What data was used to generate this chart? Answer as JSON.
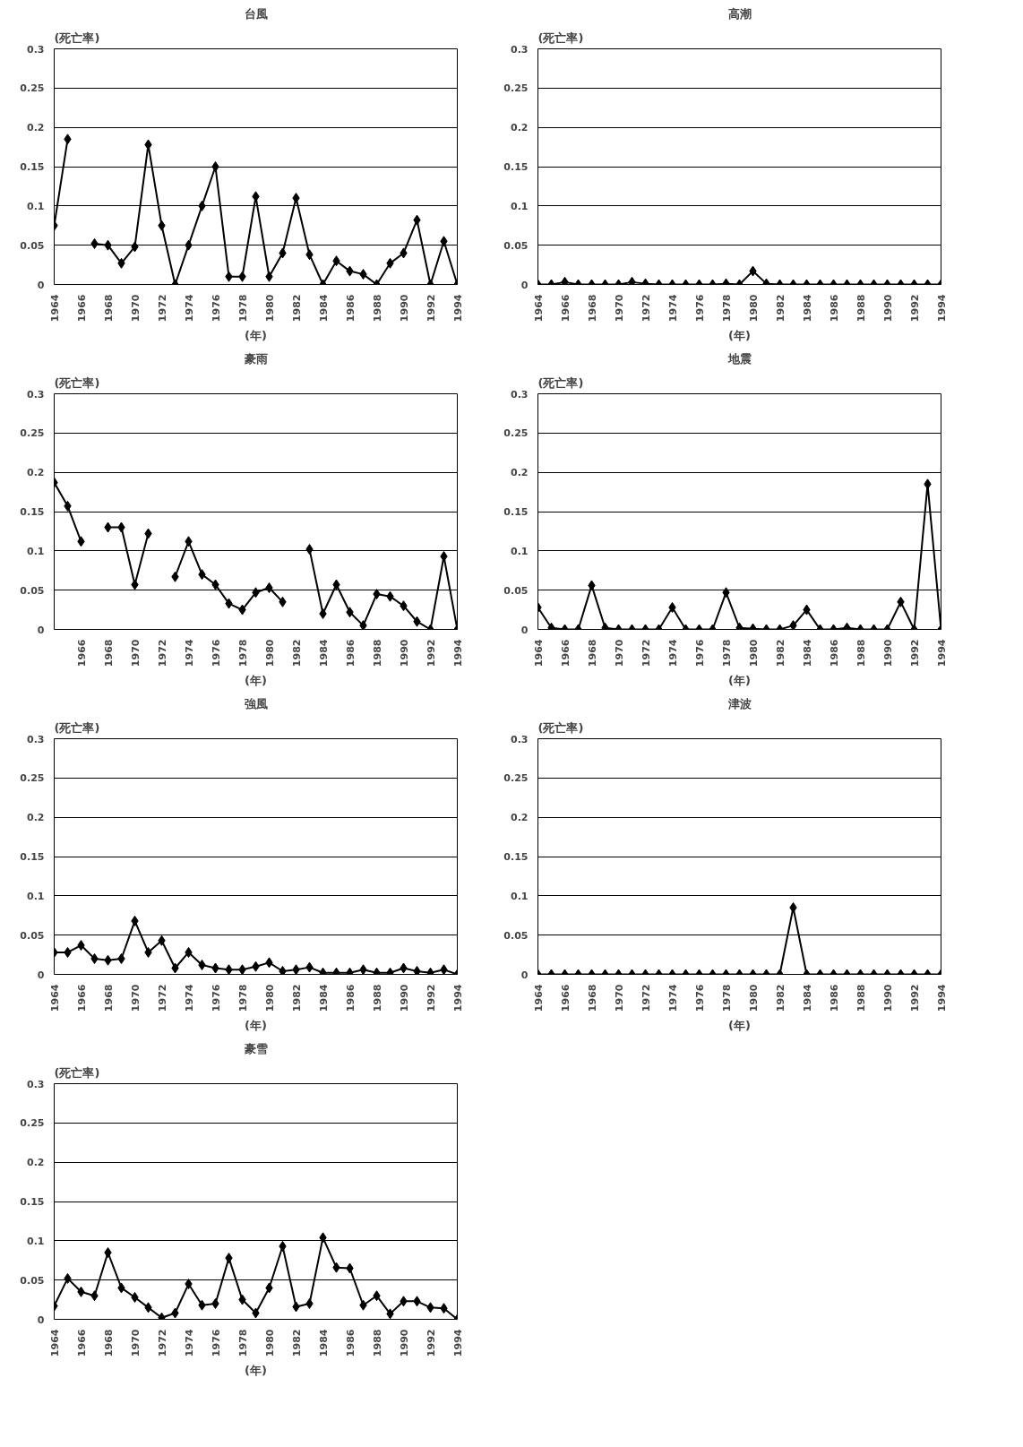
{
  "chart_data": [
    {
      "type": "line",
      "title": "台風",
      "ylabel": "(死亡率)",
      "xlabel": "(年)",
      "marker": "diamond",
      "grid": "y",
      "x": [
        1964,
        1965,
        1966,
        1967,
        1968,
        1969,
        1970,
        1971,
        1972,
        1973,
        1974,
        1975,
        1976,
        1977,
        1978,
        1979,
        1980,
        1981,
        1982,
        1983,
        1984,
        1985,
        1986,
        1987,
        1988,
        1989,
        1990,
        1991,
        1992,
        1993,
        1994
      ],
      "series": [
        {
          "color": "#000000",
          "values": [
            0.075,
            0.185,
            null,
            0.052,
            0.05,
            0.027,
            0.048,
            0.178,
            0.075,
            0,
            0.05,
            0.1,
            0.15,
            0.01,
            0.01,
            0.112,
            0.01,
            0.04,
            0.11,
            0.038,
            0,
            0.03,
            0.017,
            0.013,
            0,
            0.027,
            0.04,
            0.082,
            0,
            0.055,
            0
          ]
        }
      ],
      "xlim": [
        1964,
        1994
      ],
      "xticks": [
        1964,
        1966,
        1968,
        1970,
        1972,
        1974,
        1976,
        1978,
        1980,
        1982,
        1984,
        1986,
        1988,
        1990,
        1992,
        1994
      ],
      "ylim": [
        0,
        0.3
      ],
      "yticks": [
        0,
        0.05,
        0.1,
        0.15,
        0.2,
        0.25,
        0.3
      ]
    },
    {
      "type": "line",
      "title": "高潮",
      "ylabel": "(死亡率)",
      "xlabel": "(年)",
      "marker": "diamond",
      "grid": "y",
      "x": [
        1964,
        1965,
        1966,
        1967,
        1968,
        1969,
        1970,
        1971,
        1972,
        1973,
        1974,
        1975,
        1976,
        1977,
        1978,
        1979,
        1980,
        1981,
        1982,
        1983,
        1984,
        1985,
        1986,
        1987,
        1988,
        1989,
        1990,
        1991,
        1992,
        1993,
        1994
      ],
      "series": [
        {
          "color": "#000000",
          "values": [
            0,
            0,
            0.003,
            0,
            0,
            0,
            0,
            0.003,
            0.001,
            0,
            0,
            0,
            0,
            0,
            0.001,
            0,
            0.017,
            0.001,
            0,
            0,
            0,
            0,
            0,
            0,
            0,
            0,
            0,
            0,
            0,
            0,
            0
          ]
        }
      ],
      "xlim": [
        1964,
        1994
      ],
      "xticks": [
        1964,
        1966,
        1968,
        1970,
        1972,
        1974,
        1976,
        1978,
        1980,
        1982,
        1984,
        1986,
        1988,
        1990,
        1992,
        1994
      ],
      "ylim": [
        0,
        0.3
      ],
      "yticks": [
        0,
        0.05,
        0.1,
        0.15,
        0.2,
        0.25,
        0.3
      ]
    },
    {
      "type": "line",
      "title": "豪雨",
      "ylabel": "(死亡率)",
      "xlabel": "(年)",
      "marker": "diamond",
      "grid": "y",
      "x": [
        1964,
        1965,
        1966,
        1967,
        1968,
        1969,
        1970,
        1971,
        1972,
        1973,
        1974,
        1975,
        1976,
        1977,
        1978,
        1979,
        1980,
        1981,
        1982,
        1983,
        1984,
        1985,
        1986,
        1987,
        1988,
        1989,
        1990,
        1991,
        1992,
        1993,
        1994
      ],
      "series": [
        {
          "color": "#000000",
          "values": [
            0.187,
            0.157,
            0.112,
            null,
            0.13,
            0.13,
            0.057,
            0.122,
            null,
            0.067,
            0.112,
            0.07,
            0.057,
            0.033,
            0.025,
            0.047,
            0.053,
            0.035,
            null,
            0.102,
            0.02,
            0.057,
            0.022,
            0.005,
            0.045,
            0.042,
            0.03,
            0.01,
            0,
            0.093,
            0
          ]
        }
      ],
      "xlim": [
        1964,
        1994
      ],
      "xticks": [
        1966,
        1968,
        1970,
        1972,
        1974,
        1976,
        1978,
        1980,
        1982,
        1984,
        1986,
        1988,
        1990,
        1992,
        1994
      ],
      "ylim": [
        0,
        0.3
      ],
      "yticks": [
        0,
        0.05,
        0.1,
        0.15,
        0.2,
        0.25,
        0.3
      ]
    },
    {
      "type": "line",
      "title": "地震",
      "ylabel": "(死亡率)",
      "xlabel": "(年)",
      "marker": "diamond",
      "grid": "y",
      "x": [
        1964,
        1965,
        1966,
        1967,
        1968,
        1969,
        1970,
        1971,
        1972,
        1973,
        1974,
        1975,
        1976,
        1977,
        1978,
        1979,
        1980,
        1981,
        1982,
        1983,
        1984,
        1985,
        1986,
        1987,
        1988,
        1989,
        1990,
        1991,
        1992,
        1993,
        1994
      ],
      "series": [
        {
          "color": "#000000",
          "values": [
            0.028,
            0.002,
            0,
            0,
            0.056,
            0.002,
            0,
            0,
            0,
            0,
            0.028,
            0,
            0,
            0,
            0.047,
            0.002,
            0.001,
            0,
            0,
            0.005,
            0.025,
            0,
            0,
            0.002,
            0,
            0,
            0,
            0.035,
            0,
            0.185,
            0
          ]
        }
      ],
      "xlim": [
        1964,
        1994
      ],
      "xticks": [
        1964,
        1966,
        1968,
        1970,
        1972,
        1974,
        1976,
        1978,
        1980,
        1982,
        1984,
        1986,
        1988,
        1990,
        1992,
        1994
      ],
      "ylim": [
        0,
        0.3
      ],
      "yticks": [
        0,
        0.05,
        0.1,
        0.15,
        0.2,
        0.25,
        0.3
      ]
    },
    {
      "type": "line",
      "title": "強風",
      "ylabel": "(死亡率)",
      "xlabel": "(年)",
      "marker": "diamond",
      "grid": "y",
      "x": [
        1964,
        1965,
        1966,
        1967,
        1968,
        1969,
        1970,
        1971,
        1972,
        1973,
        1974,
        1975,
        1976,
        1977,
        1978,
        1979,
        1980,
        1981,
        1982,
        1983,
        1984,
        1985,
        1986,
        1987,
        1988,
        1989,
        1990,
        1991,
        1992,
        1993,
        1994
      ],
      "series": [
        {
          "color": "#000000",
          "values": [
            0.028,
            0.028,
            0.037,
            0.02,
            0.018,
            0.02,
            0.068,
            0.028,
            0.043,
            0.008,
            0.028,
            0.012,
            0.008,
            0.006,
            0.006,
            0.01,
            0.015,
            0.004,
            0.006,
            0.009,
            0.002,
            0.002,
            0.002,
            0.006,
            0.002,
            0.002,
            0.008,
            0.004,
            0.002,
            0.006,
            0
          ]
        }
      ],
      "xlim": [
        1964,
        1994
      ],
      "xticks": [
        1964,
        1966,
        1968,
        1970,
        1972,
        1974,
        1976,
        1978,
        1980,
        1982,
        1984,
        1986,
        1988,
        1990,
        1992,
        1994
      ],
      "ylim": [
        0,
        0.3
      ],
      "yticks": [
        0,
        0.05,
        0.1,
        0.15,
        0.2,
        0.25,
        0.3
      ]
    },
    {
      "type": "line",
      "title": "津波",
      "ylabel": "(死亡率)",
      "xlabel": "(年)",
      "marker": "diamond",
      "grid": "y",
      "x": [
        1964,
        1965,
        1966,
        1967,
        1968,
        1969,
        1970,
        1971,
        1972,
        1973,
        1974,
        1975,
        1976,
        1977,
        1978,
        1979,
        1980,
        1981,
        1982,
        1983,
        1984,
        1985,
        1986,
        1987,
        1988,
        1989,
        1990,
        1991,
        1992,
        1993,
        1994
      ],
      "series": [
        {
          "color": "#000000",
          "values": [
            0,
            0,
            0,
            0,
            0,
            0,
            0,
            0,
            0,
            0,
            0,
            0,
            0,
            0,
            0,
            0,
            0,
            0,
            0,
            0.085,
            0,
            0,
            0,
            0,
            0,
            0,
            0,
            0,
            0,
            0,
            0
          ]
        }
      ],
      "xlim": [
        1964,
        1994
      ],
      "xticks": [
        1964,
        1966,
        1968,
        1970,
        1972,
        1974,
        1976,
        1978,
        1980,
        1982,
        1984,
        1986,
        1988,
        1990,
        1992,
        1994
      ],
      "ylim": [
        0,
        0.3
      ],
      "yticks": [
        0,
        0.05,
        0.1,
        0.15,
        0.2,
        0.25,
        0.3
      ]
    },
    {
      "type": "line",
      "title": "豪雪",
      "ylabel": "(死亡率)",
      "xlabel": "(年)",
      "marker": "diamond",
      "grid": "y",
      "x": [
        1964,
        1965,
        1966,
        1967,
        1968,
        1969,
        1970,
        1971,
        1972,
        1973,
        1974,
        1975,
        1976,
        1977,
        1978,
        1979,
        1980,
        1981,
        1982,
        1983,
        1984,
        1985,
        1986,
        1987,
        1988,
        1989,
        1990,
        1991,
        1992,
        1993,
        1994
      ],
      "series": [
        {
          "color": "#000000",
          "values": [
            0.017,
            0.052,
            0.035,
            0.03,
            0.085,
            0.04,
            0.028,
            0.015,
            0.002,
            0.008,
            0.045,
            0.018,
            0.02,
            0.078,
            0.025,
            0.008,
            0.04,
            0.093,
            0.016,
            0.02,
            0.104,
            0.066,
            0.065,
            0.018,
            0.03,
            0.007,
            0.023,
            0.023,
            0.015,
            0.014,
            0
          ]
        }
      ],
      "xlim": [
        1964,
        1994
      ],
      "xticks": [
        1964,
        1966,
        1968,
        1970,
        1972,
        1974,
        1976,
        1978,
        1980,
        1982,
        1984,
        1986,
        1988,
        1990,
        1992,
        1994
      ],
      "ylim": [
        0,
        0.3
      ],
      "yticks": [
        0,
        0.05,
        0.1,
        0.15,
        0.2,
        0.25,
        0.3
      ]
    }
  ]
}
